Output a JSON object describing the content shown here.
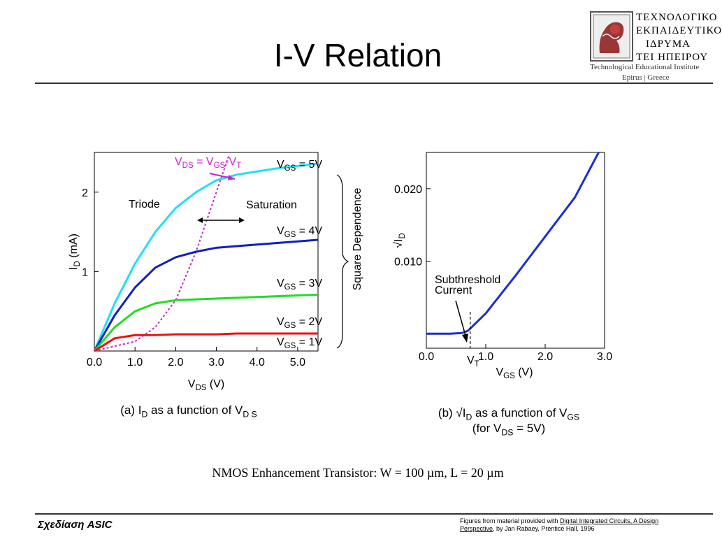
{
  "slide": {
    "title": "I-V Relation",
    "caption": "NMOS Enhancement Transistor: W = 100 µm, L = 20 µm",
    "footer_course": "Σχεδίαση ASIC",
    "footer_credit_prefix": "Figures from material provided with ",
    "footer_credit_book": "Digital Integrated Circuits, A Design Perspective",
    "footer_credit_suffix": ", by Jan Rabaey, Prentice Hall, 1996"
  },
  "logo": {
    "line1": "ΤΕΧΝΟΛΟΓΙΚΟ",
    "line2": "ΕΚΠΑΙΔΕΥΤΙΚΟ",
    "line3": "ΙΔΡΥΜΑ",
    "line4": "ΤΕΙ ΗΠΕΙΡΟΥ",
    "line5": "Technological Educational Institute",
    "line6": "Epirus | Greece"
  },
  "chart_data": [
    {
      "type": "line",
      "caption_main": "(a) I",
      "caption_sub": "D",
      "caption_rest": " as a function of V",
      "caption_sub2": "D S",
      "xlabel_main": "V",
      "xlabel_sub": "DS",
      "xlabel_unit": " (V)",
      "ylabel_main": "I",
      "ylabel_sub": "D",
      "ylabel_unit": " (mA)",
      "xlim": [
        0,
        5.5
      ],
      "ylim": [
        0,
        2.5
      ],
      "xticks": [
        "0.0",
        "1.0",
        "2.0",
        "3.0",
        "4.0",
        "5.0"
      ],
      "xtick_values": [
        0,
        1,
        2,
        3,
        4,
        5
      ],
      "yticks": [
        "1",
        "2"
      ],
      "ytick_values": [
        1,
        2
      ],
      "region_left": "Triode",
      "region_right": "Saturation",
      "boundary_label": "V",
      "boundary_sub1": "DS",
      "boundary_mid": " = V",
      "boundary_sub2": "GS",
      "boundary_end": "-V",
      "boundary_sub3": "T",
      "bracket_label": "Square Dependence",
      "series": [
        {
          "name_main": "V",
          "name_sub": "GS",
          "name_rest": " = 5V",
          "color": "#22e0f0",
          "x": [
            0,
            0.5,
            1.0,
            1.5,
            2.0,
            2.5,
            3.0,
            3.5,
            4.0,
            4.5,
            5.0,
            5.5
          ],
          "y": [
            0,
            0.6,
            1.1,
            1.5,
            1.8,
            2.0,
            2.15,
            2.22,
            2.26,
            2.3,
            2.33,
            2.36
          ]
        },
        {
          "name_main": "V",
          "name_sub": "GS",
          "name_rest": " = 4V",
          "color": "#1020c0",
          "x": [
            0,
            0.5,
            1.0,
            1.5,
            2.0,
            2.5,
            3.0,
            3.5,
            4.0,
            4.5,
            5.0,
            5.5
          ],
          "y": [
            0,
            0.45,
            0.8,
            1.05,
            1.18,
            1.25,
            1.3,
            1.32,
            1.34,
            1.36,
            1.38,
            1.4
          ]
        },
        {
          "name_main": "V",
          "name_sub": "GS",
          "name_rest": " = 3V",
          "color": "#22dd22",
          "x": [
            0,
            0.5,
            1.0,
            1.5,
            2.0,
            2.5,
            3.0,
            3.5,
            4.0,
            4.5,
            5.0,
            5.5
          ],
          "y": [
            0,
            0.3,
            0.5,
            0.6,
            0.64,
            0.65,
            0.66,
            0.67,
            0.68,
            0.69,
            0.7,
            0.71
          ]
        },
        {
          "name_main": "V",
          "name_sub": "GS",
          "name_rest": " = 2V",
          "color": "#ee1111",
          "x": [
            0,
            0.5,
            1.0,
            1.5,
            2.0,
            2.5,
            3.0,
            3.5,
            4.0,
            4.5,
            5.0,
            5.5
          ],
          "y": [
            0,
            0.16,
            0.2,
            0.2,
            0.21,
            0.21,
            0.21,
            0.22,
            0.22,
            0.22,
            0.22,
            0.22
          ]
        },
        {
          "name_main": "V",
          "name_sub": "GS",
          "name_rest": " = 1V",
          "color": "#000000",
          "x": [
            0,
            5.5
          ],
          "y": [
            0,
            0
          ]
        }
      ],
      "boundary_curve": {
        "color": "#cc22cc",
        "x": [
          0,
          1.0,
          1.5,
          2.0,
          2.5,
          3.0,
          3.3
        ],
        "y": [
          0,
          0.12,
          0.3,
          0.64,
          1.25,
          2.0,
          2.45
        ]
      }
    },
    {
      "type": "line",
      "caption_main": "(b) √I",
      "caption_sub": "D",
      "caption_rest": " as a function of V",
      "caption_sub2": "GS",
      "caption2_main": "(for V",
      "caption2_sub": "DS",
      "caption2_rest": " = 5V)",
      "xlabel_main": "V",
      "xlabel_sub": "GS",
      "xlabel_unit": " (V)",
      "ylabel_main": "√I",
      "ylabel_sub": "D",
      "xlim": [
        0,
        3.0
      ],
      "ylim": [
        -0.002,
        0.025
      ],
      "xticks": [
        "0.0",
        "1.0",
        "2.0",
        "3.0"
      ],
      "xtick_values": [
        0,
        1,
        2,
        3
      ],
      "yticks": [
        "0.010",
        "0.020"
      ],
      "ytick_values": [
        0.01,
        0.02
      ],
      "annotation_line1": "Subthreshold",
      "annotation_line2": "Current",
      "vt_main": "V",
      "vt_sub": "T",
      "vt_value": 0.75,
      "series": [
        {
          "name": "",
          "color": "#1a2fd0",
          "x": [
            0.0,
            0.4,
            0.6,
            0.7,
            0.8,
            1.0,
            1.5,
            2.0,
            2.5,
            2.9
          ],
          "y": [
            0.0,
            0.0,
            0.0001,
            0.0004,
            0.0012,
            0.0028,
            0.008,
            0.0134,
            0.0188,
            0.025
          ]
        }
      ]
    }
  ]
}
